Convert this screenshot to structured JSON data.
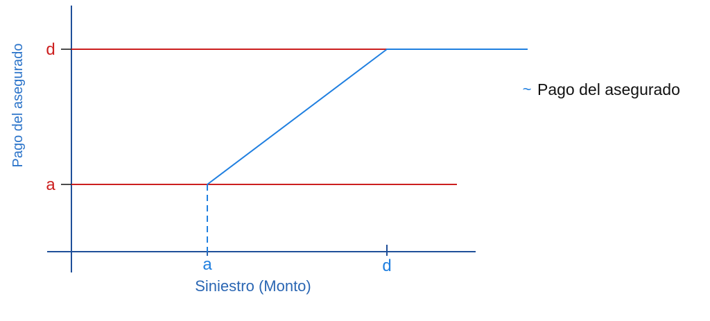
{
  "colors": {
    "axis": "#1f4f99",
    "red": "#cc1f1f",
    "blue": "#1f7fe0",
    "label_blue": "#2a66b3",
    "ylabel_blue": "#2a73c9",
    "text": "#111111"
  },
  "chart_data": {
    "type": "line",
    "title": "",
    "xlabel": "Siniestro (Monto)",
    "ylabel": "Pago del asegurado",
    "x_ticks": [
      "a",
      "d"
    ],
    "y_ticks": [
      "d",
      "a"
    ],
    "legend": {
      "position": "right",
      "entries": [
        {
          "marker": "~",
          "label": "Pago del asegurado"
        }
      ]
    },
    "grid": false,
    "x_values": {
      "a": 1,
      "d": 2
    },
    "xlim": [
      0,
      2.4
    ],
    "ylim": [
      0,
      2.4
    ],
    "reference_lines": [
      {
        "label": "d",
        "y": 2,
        "x_range": [
          0,
          2.4
        ]
      },
      {
        "label": "a",
        "y": 1,
        "x_range": [
          0,
          2.4
        ]
      }
    ],
    "series": [
      {
        "name": "Pago del asegurado",
        "points": [
          [
            1,
            1
          ],
          [
            2,
            2
          ],
          [
            2.4,
            2
          ]
        ]
      }
    ],
    "drop_line": {
      "x": 1,
      "from_y": 1,
      "to_y": 0,
      "style": "dashed"
    }
  }
}
